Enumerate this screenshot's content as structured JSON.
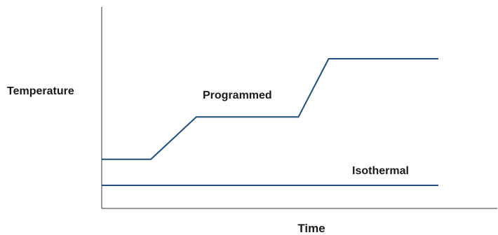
{
  "chart_data": {
    "type": "line",
    "xlabel": "Time",
    "ylabel": "Temperature",
    "xlim": [
      0,
      100
    ],
    "ylim": [
      0,
      100
    ],
    "grid": false,
    "line_color": "#1f4e79",
    "axis_color": "#333333",
    "series": [
      {
        "name": "Programmed",
        "x": [
          0,
          13,
          25,
          52,
          60,
          89
        ],
        "y": [
          23,
          23,
          44,
          44,
          73,
          73
        ]
      },
      {
        "name": "Isothermal",
        "x": [
          0,
          89
        ],
        "y": [
          10,
          10
        ]
      }
    ]
  }
}
